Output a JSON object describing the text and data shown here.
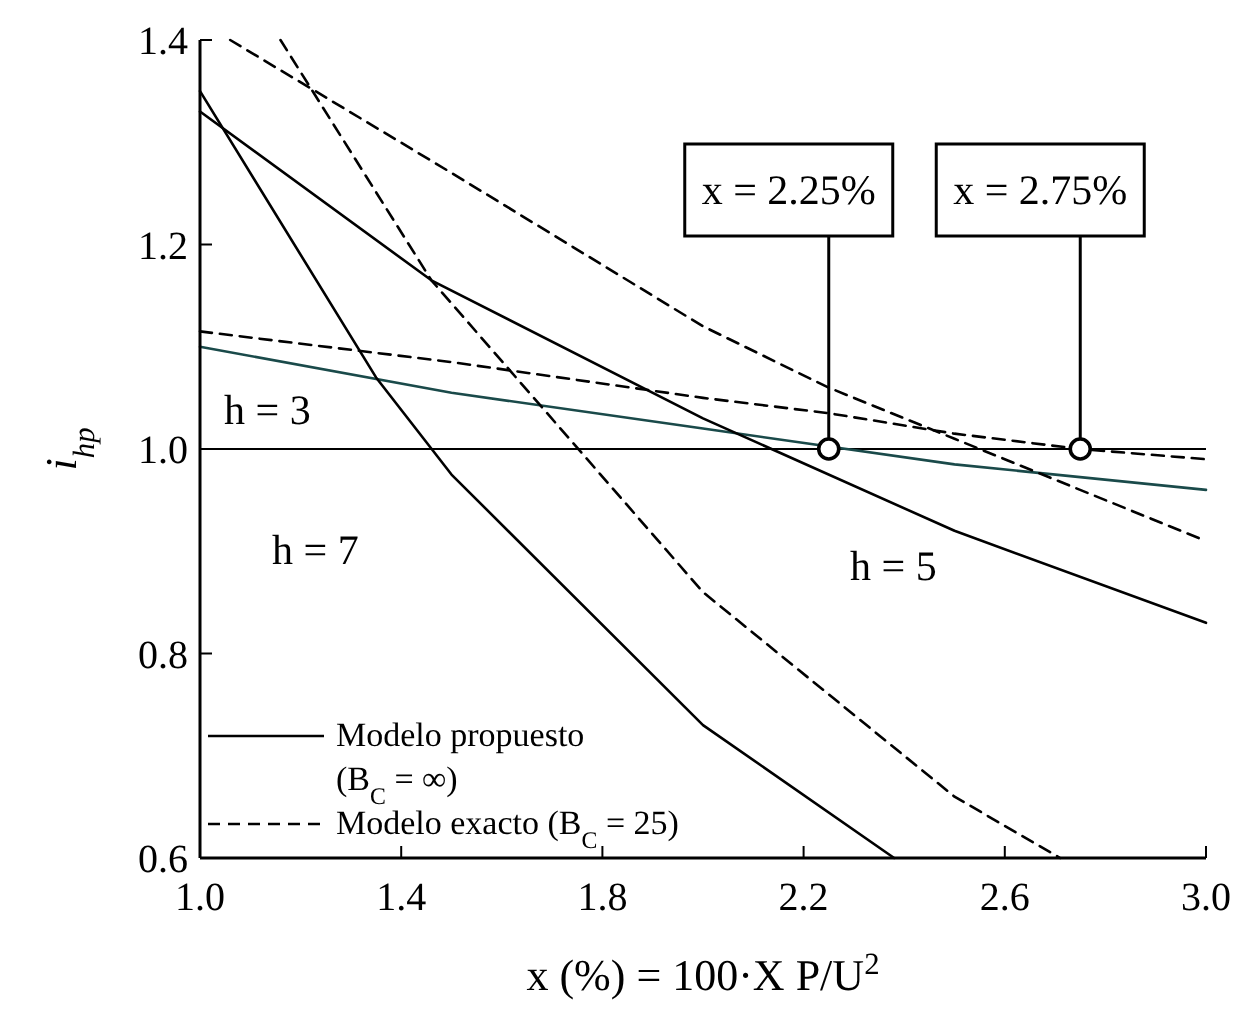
{
  "chart_data": {
    "type": "line",
    "xlabel": "x (%) = 100·X P/U$^{2}$",
    "ylabel": "i$_{hp}$",
    "xlim": [
      1.0,
      3.0
    ],
    "ylim": [
      0.6,
      1.4
    ],
    "xticks": [
      {
        "value": 1.0,
        "label": "1.0"
      },
      {
        "value": 1.4,
        "label": "1.4"
      },
      {
        "value": 1.8,
        "label": "1.8"
      },
      {
        "value": 2.2,
        "label": "2.2"
      },
      {
        "value": 2.6,
        "label": "2.6"
      },
      {
        "value": 3.0,
        "label": "3.0"
      }
    ],
    "yticks": [
      {
        "value": 0.6,
        "label": "0.6"
      },
      {
        "value": 0.8,
        "label": "0.8"
      },
      {
        "value": 1.0,
        "label": "1.0"
      },
      {
        "value": 1.2,
        "label": "1.2"
      },
      {
        "value": 1.4,
        "label": "1.4"
      }
    ],
    "grid": false,
    "legend": "bottom left",
    "marker": "none",
    "series": [
      {
        "color": "#1a4a4a",
        "line_style": "solid",
        "x": [
          1.0,
          1.5,
          2.0,
          2.5,
          3.0
        ],
        "values": [
          1.1,
          1.055,
          1.02,
          0.985,
          0.96
        ]
      },
      {
        "name": "Modelo exacto (B$_{C}$ = 25)",
        "color": "#000000",
        "line_style": "dashed",
        "x": [
          1.0,
          1.5,
          2.0,
          2.25,
          2.5,
          2.75,
          3.0
        ],
        "values": [
          1.115,
          1.085,
          1.05,
          1.035,
          1.015,
          1.0,
          0.99
        ]
      },
      {
        "name": "Modelo propuesto (B$_{C}$ = ∞)",
        "color": "#000000",
        "line_style": "solid",
        "x": [
          1.0,
          1.46,
          2.0,
          2.5,
          3.0
        ],
        "values": [
          1.33,
          1.165,
          1.03,
          0.92,
          0.83
        ]
      },
      {
        "color": "#000000",
        "line_style": "dashed",
        "x": [
          1.06,
          1.5,
          2.0,
          2.25,
          2.5,
          3.0
        ],
        "values": [
          1.4,
          1.27,
          1.12,
          1.06,
          1.01,
          0.91
        ]
      },
      {
        "color": "#000000",
        "line_style": "solid",
        "x": [
          1.0,
          1.35,
          1.5,
          2.0,
          2.38
        ],
        "values": [
          1.35,
          1.07,
          0.975,
          0.73,
          0.6
        ]
      },
      {
        "color": "#000000",
        "line_style": "dashed",
        "x": [
          1.16,
          1.46,
          2.0,
          2.5,
          2.71
        ],
        "values": [
          1.4,
          1.165,
          0.86,
          0.66,
          0.6
        ]
      }
    ],
    "ref_lines": [
      {
        "axis": "y",
        "value": 1.0,
        "color": "#000000"
      }
    ],
    "annotations": [
      "h = 3",
      "h = 7",
      "h = 5",
      {
        "text": "x = 2.25%",
        "x": 2.25,
        "y": 1.0
      },
      {
        "text": "x = 2.75%",
        "x": 2.75,
        "y": 1.0
      }
    ]
  }
}
